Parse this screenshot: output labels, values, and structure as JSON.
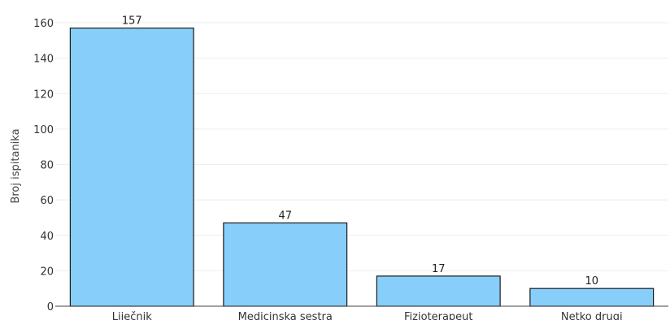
{
  "chart_data": {
    "type": "bar",
    "title": "",
    "xlabel": "",
    "ylabel": "Broj ispitanika",
    "categories": [
      "Liječnik",
      "Medicinska sestra",
      "Fizioterapeut",
      "Netko drugi"
    ],
    "values": [
      157,
      47,
      17,
      10
    ],
    "data_labels": [
      "157",
      "47",
      "17",
      "10"
    ],
    "ylim": [
      0,
      160
    ],
    "yticks": [
      0,
      20,
      40,
      60,
      80,
      100,
      120,
      140,
      160
    ],
    "grid": true,
    "legend": "none",
    "colors": {
      "bar_fill": "#87cefa",
      "bar_stroke": "#1a1a1a",
      "grid": "#eeeeee",
      "axis": "#444444"
    }
  }
}
